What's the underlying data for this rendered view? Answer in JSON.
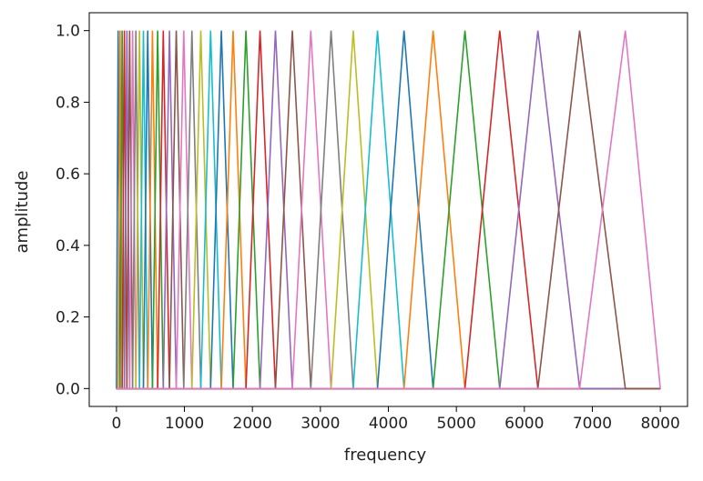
{
  "chart_data": {
    "type": "line",
    "title": "",
    "xlabel": "frequency",
    "ylabel": "amplitude",
    "xlim": [
      -400,
      8400
    ],
    "ylim": [
      -0.05,
      1.05
    ],
    "x_ticks": [
      0,
      1000,
      2000,
      3000,
      4000,
      5000,
      6000,
      7000,
      8000
    ],
    "x_tick_labels": [
      "0",
      "1000",
      "2000",
      "3000",
      "4000",
      "5000",
      "6000",
      "7000",
      "8000"
    ],
    "y_ticks": [
      0.0,
      0.2,
      0.4,
      0.6,
      0.8,
      1.0
    ],
    "y_tick_labels": [
      "0.0",
      "0.2",
      "0.4",
      "0.6",
      "0.8",
      "1.0"
    ],
    "grid": false,
    "series_description": "triangular mel filterbank: each filter rises from 0 at the previous center to 1 at its center, then falls to 0 at the next center",
    "filter_edges_hz": [
      0,
      25,
      53,
      84,
      117,
      154,
      194,
      238,
      286,
      339,
      397,
      460,
      530,
      606,
      689,
      780,
      880,
      990,
      1110,
      1241,
      1385,
      1543,
      1716,
      1905,
      2112,
      2339,
      2587,
      2859,
      3157,
      3483,
      3840,
      4230,
      4658,
      5126,
      5638,
      6199,
      6813,
      7485,
      8000
    ],
    "color_cycle": [
      "#1f77b4",
      "#ff7f0e",
      "#2ca02c",
      "#d62728",
      "#9467bd",
      "#8c564b",
      "#e377c2",
      "#7f7f7f",
      "#bcbd22",
      "#17becf"
    ]
  }
}
